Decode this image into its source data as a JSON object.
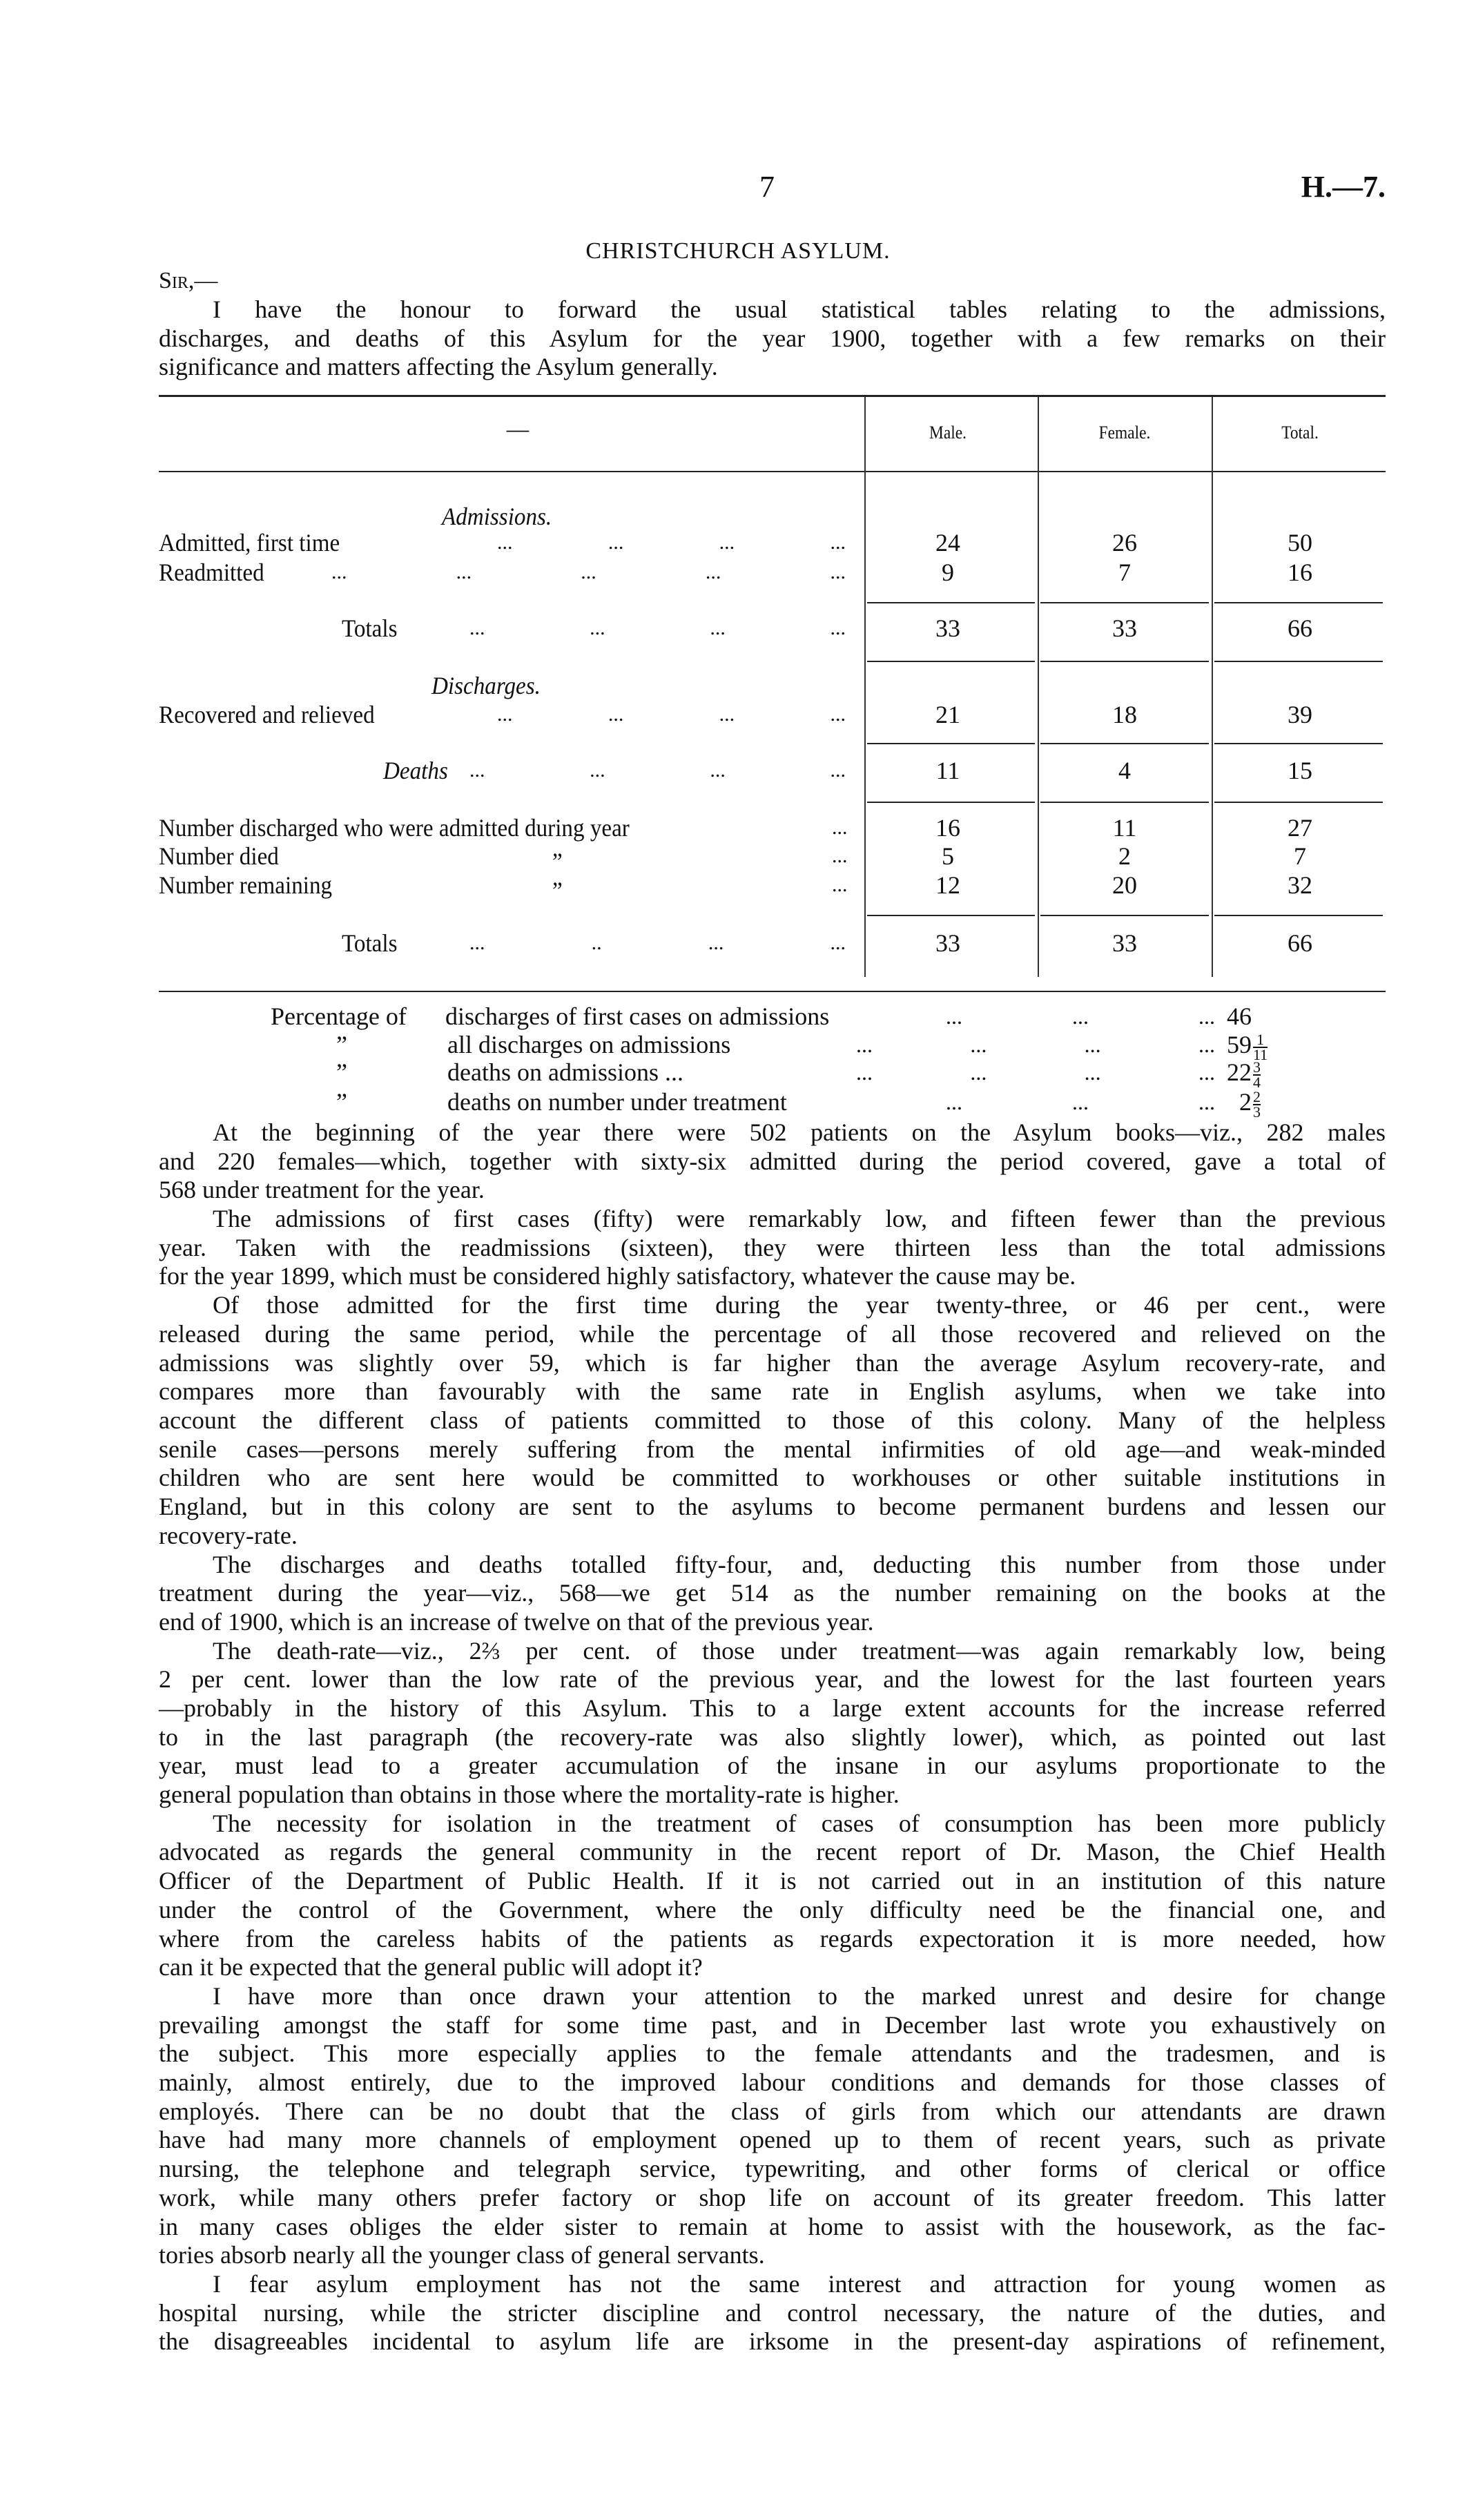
{
  "header": {
    "page_number": "7",
    "reference": "H.—7.",
    "title": "CHRISTCHURCH ASYLUM.",
    "salutation": "Sir,—"
  },
  "intro": [
    "I have the honour to forward the usual statistical tables relating to the admissions,",
    "discharges, and deaths of this Asylum for the year 1900, together with a few remarks on their",
    "significance and matters affecting the Asylum generally."
  ],
  "table": {
    "columns": [
      "—",
      "Male.",
      "Female.",
      "Total."
    ],
    "rows": [
      {
        "type": "heading",
        "label": "Admissions."
      },
      {
        "label": "Admitted, first time",
        "leader": [
          "...",
          "...",
          "...",
          "..."
        ],
        "values": [
          "24",
          "26",
          "50"
        ]
      },
      {
        "label": "Readmitted",
        "leader": [
          "...",
          "...",
          "...",
          "...",
          "..."
        ],
        "values": [
          "9",
          "7",
          "16"
        ]
      },
      {
        "type": "total",
        "label": "Totals",
        "leader": [
          "...",
          "...",
          "...",
          "..."
        ],
        "values": [
          "33",
          "33",
          "66"
        ]
      },
      {
        "type": "heading",
        "label": "Discharges."
      },
      {
        "label": "Recovered and relieved",
        "leader": [
          "...",
          "...",
          "...",
          "..."
        ],
        "values": [
          "21",
          "18",
          "39"
        ]
      },
      {
        "type": "italic",
        "label": "Deaths",
        "leader": [
          "...",
          "...",
          "...",
          "..."
        ],
        "values": [
          "11",
          "4",
          "15"
        ]
      },
      {
        "label": "Number discharged who were admitted during year",
        "leader": [
          "..."
        ],
        "values": [
          "16",
          "11",
          "27"
        ]
      },
      {
        "label": "Number died",
        "ditto": "”",
        "leader": [
          "..."
        ],
        "values": [
          "5",
          "2",
          "7"
        ]
      },
      {
        "label": "Number remaining",
        "ditto": "”",
        "leader": [
          "..."
        ],
        "values": [
          "12",
          "20",
          "32"
        ]
      },
      {
        "type": "total",
        "label": "Totals",
        "leader": [
          "...",
          "..",
          "...",
          "..."
        ],
        "values": [
          "33",
          "33",
          "66"
        ]
      }
    ]
  },
  "percentages": [
    {
      "prefix": "Percentage of",
      "label": "discharges of first cases on admissions",
      "leader": [
        "...",
        "...",
        "..."
      ],
      "whole": "46"
    },
    {
      "prefix": "”",
      "label": "all discharges on admissions",
      "leader": [
        "...",
        "...",
        "...",
        "..."
      ],
      "whole": "59",
      "num": "1",
      "den": "11"
    },
    {
      "prefix": "”",
      "label": "deaths on admissions ...",
      "leader": [
        "...",
        "...",
        "...",
        "..."
      ],
      "whole": "22",
      "num": "3",
      "den": "4"
    },
    {
      "prefix": "”",
      "label": "deaths on number under treatment",
      "leader": [
        "...",
        "...",
        "..."
      ],
      "whole": "2",
      "num": "2",
      "den": "3"
    }
  ],
  "paragraphs": [
    [
      "At the beginning of the year there were 502 patients on the Asylum books—viz., 282 males",
      "and 220 females—which, together with sixty-six admitted during the period covered, gave a total of",
      "568 under treatment for the year."
    ],
    [
      "The admissions of first cases (fifty) were remarkably low, and fifteen fewer than the previous",
      "year.  Taken with the readmissions (sixteen), they were thirteen less than the total admissions",
      "for the year 1899, which must be considered highly satisfactory, whatever the cause may be."
    ],
    [
      "Of those admitted for the first time during the year twenty-three, or 46 per cent., were",
      "released during the same period, while the percentage of all those recovered and relieved on the",
      "admissions was slightly over 59, which is far higher than the average Asylum recovery-rate, and",
      "compares more than favourably with the same rate in English asylums, when we take into",
      "account the different class of patients committed to those of this colony.  Many of the helpless",
      "senile cases—persons merely suffering from the mental infirmities of old age—and weak-minded",
      "children who are sent here would be committed to workhouses or other suitable institutions in",
      "England, but in this colony are sent to the asylums to become permanent burdens and lessen our",
      "recovery-rate."
    ],
    [
      "The discharges and deaths totalled fifty-four, and, deducting this number from those under",
      "treatment during the year—viz., 568—we get 514 as the number remaining on the books at the",
      "end of 1900, which is an increase of twelve on that of the previous year."
    ],
    [
      "The death-rate—viz., 2⅔ per cent. of those under treatment—was again remarkably low, being",
      "2 per cent. lower than the low rate of the previous year, and the lowest for the last fourteen years",
      "—probably in the history of this Asylum.  This to a large extent accounts for the increase referred",
      "to in the last paragraph (the recovery-rate was also slightly lower), which, as pointed out last",
      "year, must lead to a greater accumulation of the insane in our asylums proportionate to the",
      "general population than obtains in those where the mortality-rate is higher."
    ],
    [
      "The necessity for isolation in the treatment of cases of consumption has been more publicly",
      "advocated as regards the general community in the recent report of Dr. Mason, the Chief Health",
      "Officer of the Department of Public Health.  If it is not carried out in an institution of this nature",
      "under the control of the Government, where the only difficulty need be the financial one, and",
      "where from the careless habits of the patients as regards expectoration it is more needed, how",
      "can it be expected that the general public will adopt it?"
    ],
    [
      "I have more than once drawn your attention to the marked unrest and desire for change",
      "prevailing amongst the staff for some time past, and in December last wrote you exhaustively on",
      "the subject.  This more especially applies to the female attendants and the tradesmen, and is",
      "mainly, almost entirely, due to the improved labour conditions and demands for those classes of",
      "employés.  There can be no doubt that the class of girls from which our attendants are drawn",
      "have had many more channels of employment opened up to them of recent years, such as private",
      "nursing, the telephone and telegraph service, typewriting, and other forms of clerical or office",
      "work, while many others prefer factory or shop life on account of its greater freedom.  This latter",
      "in many cases obliges the elder sister to remain at home to assist with the housework, as the fac-",
      "tories absorb nearly all the younger class of general servants."
    ],
    [
      "I fear asylum employment has not the same interest and attraction for young women as",
      "hospital nursing, while the stricter discipline and control necessary, the nature of the duties, and",
      "the disagreeables incidental to asylum life are irksome in the present-day aspirations of refinement,"
    ]
  ]
}
